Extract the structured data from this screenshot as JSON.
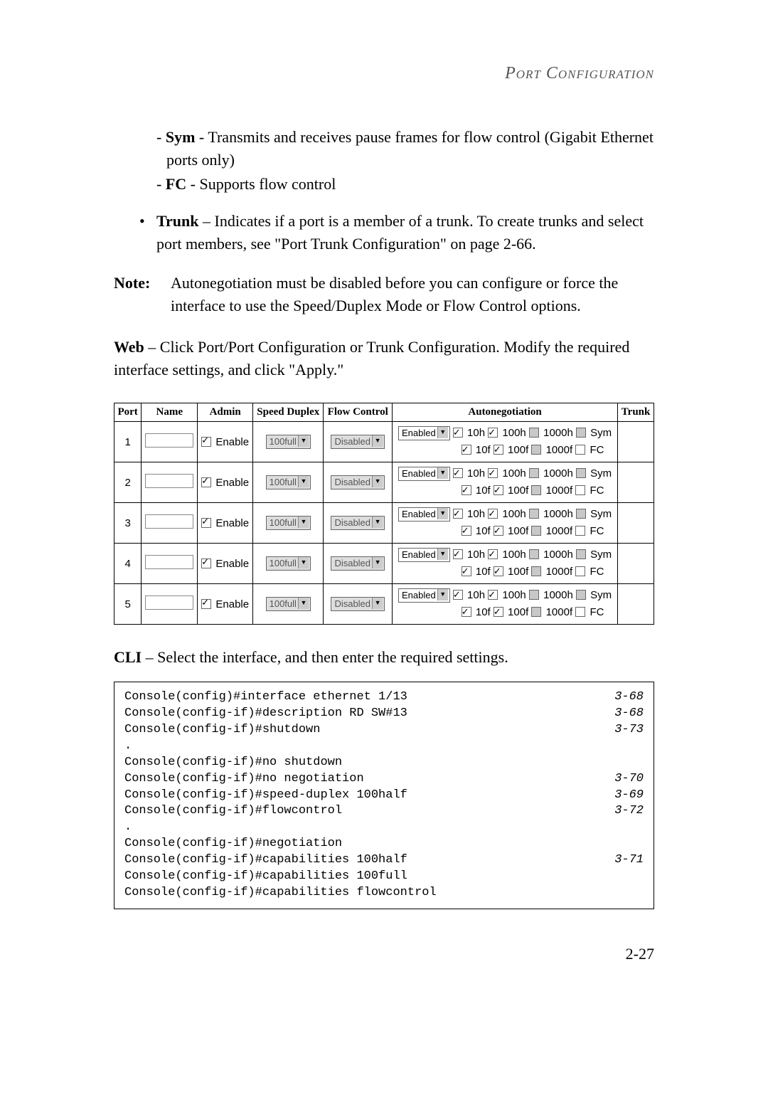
{
  "header": "Port Configuration",
  "sym_label": "Sym",
  "sym_text": " - Transmits and receives pause frames for flow control (Gigabit Ethernet ports only)",
  "fc_label": "FC",
  "fc_text": " - Supports flow control",
  "trunk_label": "Trunk",
  "trunk_text": " – Indicates if a port is a member of a trunk. To create trunks and select port members, see \"Port Trunk Configuration\" on page 2-66.",
  "note_label": "Note:",
  "note_text": "Autonegotiation must be disabled before you can configure or force the interface to use the Speed/Duplex Mode or Flow Control options.",
  "web_label": "Web",
  "web_text": " – Click Port/Port Configuration or Trunk Configuration. Modify the required interface settings, and click \"Apply.\"",
  "table": {
    "headers": [
      "Port",
      "Name",
      "Admin",
      "Speed Duplex",
      "Flow Control",
      "Autonegotiation",
      "Trunk"
    ],
    "enable_label": "Enable",
    "speed_option": "100full",
    "flow_option": "Disabled",
    "autoneg_option": "Enabled",
    "caps_row1": [
      {
        "label": "10h",
        "checked": true,
        "grey": false
      },
      {
        "label": "100h",
        "checked": true,
        "grey": false
      },
      {
        "label": "1000h",
        "checked": false,
        "grey": true
      },
      {
        "label": "Sym",
        "checked": false,
        "grey": true
      }
    ],
    "caps_row2": [
      {
        "label": "10f",
        "checked": true,
        "grey": false
      },
      {
        "label": "100f",
        "checked": true,
        "grey": false
      },
      {
        "label": "1000f",
        "checked": false,
        "grey": true
      },
      {
        "label": "FC",
        "checked": false,
        "grey": false
      }
    ],
    "ports": [
      "1",
      "2",
      "3",
      "4",
      "5"
    ]
  },
  "cli_label": "CLI",
  "cli_text": " – Select the interface, and then enter the required settings.",
  "cli_lines": [
    {
      "cmd": "Console(config)#interface ethernet 1/13",
      "ref": "3-68"
    },
    {
      "cmd": "Console(config-if)#description RD SW#13",
      "ref": "3-68"
    },
    {
      "cmd": "Console(config-if)#shutdown",
      "ref": "3-73"
    },
    {
      "cmd": ".",
      "ref": ""
    },
    {
      "cmd": "Console(config-if)#no shutdown",
      "ref": ""
    },
    {
      "cmd": "Console(config-if)#no negotiation",
      "ref": "3-70"
    },
    {
      "cmd": "Console(config-if)#speed-duplex 100half",
      "ref": "3-69"
    },
    {
      "cmd": "Console(config-if)#flowcontrol",
      "ref": "3-72"
    },
    {
      "cmd": ".",
      "ref": ""
    },
    {
      "cmd": "Console(config-if)#negotiation",
      "ref": ""
    },
    {
      "cmd": "Console(config-if)#capabilities 100half",
      "ref": "3-71"
    },
    {
      "cmd": "Console(config-if)#capabilities 100full",
      "ref": ""
    },
    {
      "cmd": "Console(config-if)#capabilities flowcontrol",
      "ref": ""
    }
  ],
  "page_number": "2-27"
}
